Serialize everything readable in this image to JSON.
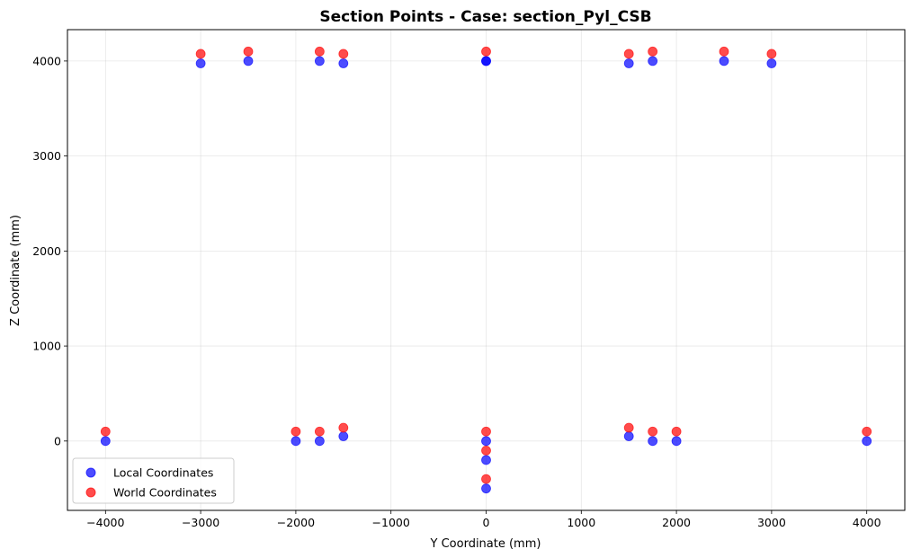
{
  "chart_data": {
    "type": "scatter",
    "title": "Section Points - Case: section_Pyl_CSB",
    "xlabel": "Y Coordinate (mm)",
    "ylabel": "Z Coordinate (mm)",
    "xlim": [
      -4400,
      4400
    ],
    "ylim": [
      -730,
      4330
    ],
    "xticks": [
      -4000,
      -3000,
      -2000,
      -1000,
      0,
      1000,
      2000,
      3000,
      4000
    ],
    "yticks": [
      0,
      1000,
      2000,
      3000,
      4000
    ],
    "grid": true,
    "legend_position": "lower-left",
    "series": [
      {
        "name": "Local Coordinates",
        "color": "#0000ff",
        "points": [
          [
            -3000,
            3975
          ],
          [
            -2500,
            4000
          ],
          [
            -1750,
            4000
          ],
          [
            -1500,
            3975
          ],
          [
            0,
            4000
          ],
          [
            0,
            4000
          ],
          [
            1500,
            3975
          ],
          [
            1750,
            4000
          ],
          [
            2500,
            4000
          ],
          [
            3000,
            3975
          ],
          [
            -4000,
            0
          ],
          [
            -2000,
            0
          ],
          [
            -1750,
            0
          ],
          [
            -1500,
            50
          ],
          [
            0,
            0
          ],
          [
            0,
            -200
          ],
          [
            0,
            -500
          ],
          [
            1500,
            50
          ],
          [
            1750,
            0
          ],
          [
            2000,
            0
          ],
          [
            4000,
            0
          ]
        ]
      },
      {
        "name": "World Coordinates",
        "color": "#ff0000",
        "points": [
          [
            -3000,
            4075
          ],
          [
            -2500,
            4100
          ],
          [
            -1750,
            4100
          ],
          [
            -1500,
            4075
          ],
          [
            0,
            4100
          ],
          [
            1500,
            4075
          ],
          [
            1750,
            4100
          ],
          [
            2500,
            4100
          ],
          [
            3000,
            4075
          ],
          [
            -4000,
            100
          ],
          [
            -2000,
            100
          ],
          [
            -1750,
            100
          ],
          [
            -1500,
            140
          ],
          [
            0,
            100
          ],
          [
            0,
            -100
          ],
          [
            0,
            -400
          ],
          [
            1500,
            140
          ],
          [
            1750,
            100
          ],
          [
            2000,
            100
          ],
          [
            4000,
            100
          ]
        ]
      }
    ]
  }
}
